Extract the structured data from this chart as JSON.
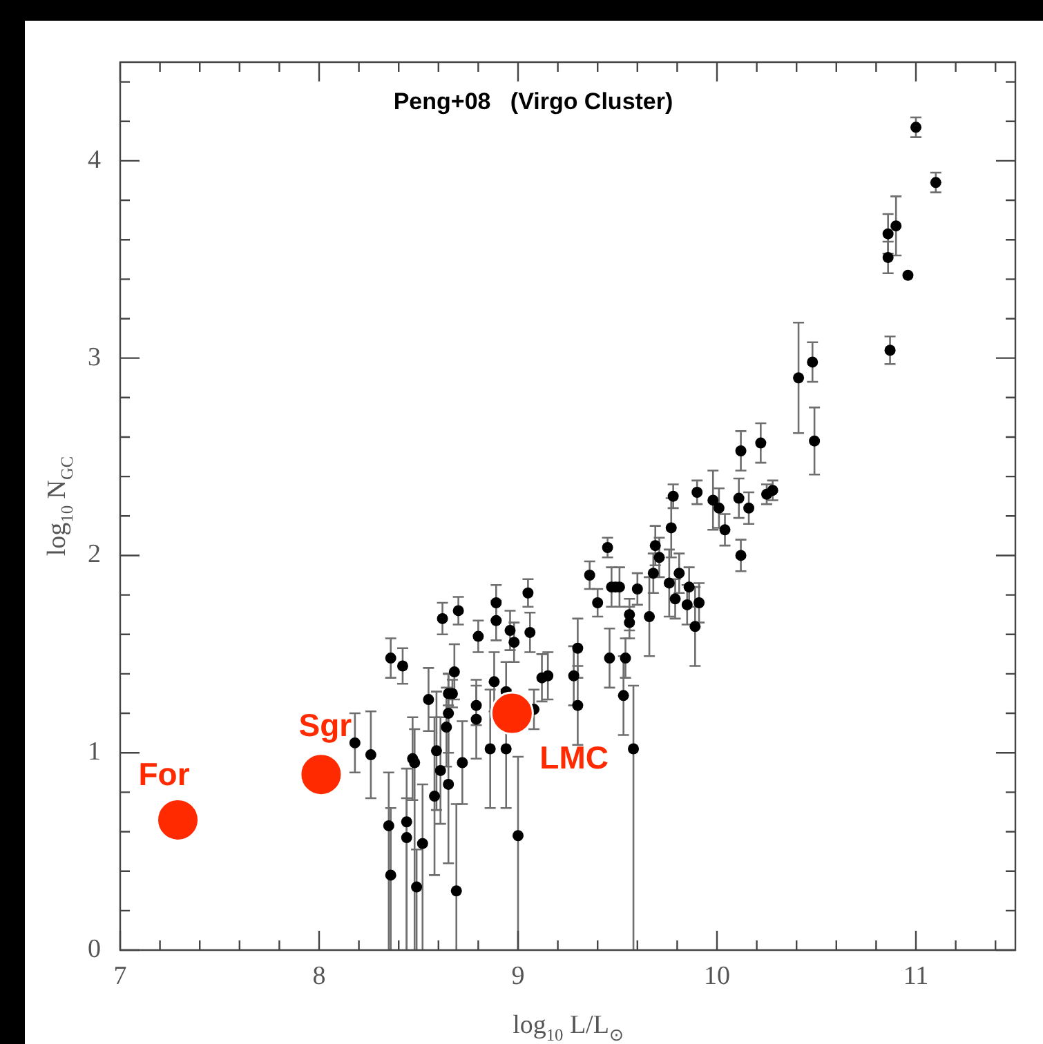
{
  "chart_data": {
    "type": "scatter",
    "title": "Peng+08   (Virgo Cluster)",
    "xlabel": "log$_{10}$ L/L$_{⊙}$",
    "ylabel": "log$_{10}$ N$_{GC}$",
    "xlim": [
      7,
      11.5
    ],
    "ylim": [
      0,
      4.5
    ],
    "xticks": [
      7,
      {
        "value": 7.2,
        "label": null
      },
      {
        "value": 7.4,
        "label": null
      },
      {
        "value": 7.6,
        "label": null
      },
      {
        "value": 7.8,
        "label": null
      },
      8,
      {
        "value": 8.2,
        "label": null
      },
      {
        "value": 8.4,
        "label": null
      },
      {
        "value": 8.6,
        "label": null
      },
      {
        "value": 8.8,
        "label": null
      },
      9,
      {
        "value": 9.2,
        "label": null
      },
      {
        "value": 9.4,
        "label": null
      },
      {
        "value": 9.6,
        "label": null
      },
      {
        "value": 9.8,
        "label": null
      },
      10,
      {
        "value": 10.2,
        "label": null
      },
      {
        "value": 10.4,
        "label": null
      },
      {
        "value": 10.6,
        "label": null
      },
      {
        "value": 10.8,
        "label": null
      },
      11,
      {
        "value": 11.2,
        "label": null
      },
      {
        "value": 11.4,
        "label": null
      }
    ],
    "yticks": [
      0,
      {
        "value": 0.2,
        "label": null
      },
      {
        "value": 0.4,
        "label": null
      },
      {
        "value": 0.6,
        "label": null
      },
      {
        "value": 0.8,
        "label": null
      },
      1,
      {
        "value": 1.2,
        "label": null
      },
      {
        "value": 1.4,
        "label": null
      },
      {
        "value": 1.6,
        "label": null
      },
      {
        "value": 1.8,
        "label": null
      },
      2,
      {
        "value": 2.2,
        "label": null
      },
      {
        "value": 2.4,
        "label": null
      },
      {
        "value": 2.6,
        "label": null
      },
      {
        "value": 2.8,
        "label": null
      },
      3,
      {
        "value": 3.2,
        "label": null
      },
      {
        "value": 3.4,
        "label": null
      },
      {
        "value": 3.6,
        "label": null
      },
      {
        "value": 3.8,
        "label": null
      },
      4,
      {
        "value": 4.2,
        "label": null
      },
      {
        "value": 4.4,
        "label": null
      }
    ],
    "grid": false,
    "legend": false,
    "marker": "circle",
    "series": [
      {
        "color": "#000000",
        "x": [
          8.18,
          8.26,
          8.36,
          8.42,
          8.35,
          8.36,
          8.44,
          8.44,
          8.47,
          8.48,
          8.49,
          8.52,
          8.55,
          8.58,
          8.59,
          8.61,
          8.62,
          8.65,
          8.64,
          8.65,
          8.65,
          8.67,
          8.68,
          8.69,
          8.7,
          8.72,
          8.79,
          8.79,
          8.8,
          8.86,
          8.88,
          8.89,
          8.89,
          8.94,
          8.94,
          8.96,
          8.98,
          9.0,
          9.05,
          9.06,
          9.08,
          9.12,
          9.15,
          9.28,
          9.3,
          9.3,
          9.36,
          9.4,
          9.45,
          9.46,
          9.47,
          9.49,
          9.51,
          9.53,
          9.54,
          9.56,
          9.56,
          9.58,
          9.6,
          9.66,
          9.68,
          9.69,
          9.71,
          9.76,
          9.77,
          9.78,
          9.79,
          9.81,
          9.85,
          9.86,
          9.89,
          9.91,
          9.9,
          9.98,
          10.01,
          10.04,
          10.11,
          10.12,
          10.16,
          10.12,
          10.22,
          10.25,
          10.28,
          10.41,
          10.48,
          10.49,
          11.0,
          11.1,
          10.86,
          10.9,
          10.86,
          10.96,
          10.87
        ],
        "values": [
          1.05,
          0.99,
          1.48,
          1.44,
          0.63,
          0.38,
          0.65,
          0.57,
          0.97,
          0.95,
          0.32,
          0.54,
          1.27,
          0.78,
          1.01,
          0.91,
          1.68,
          0.84,
          1.13,
          1.2,
          1.3,
          1.3,
          1.41,
          0.3,
          1.72,
          0.95,
          1.24,
          1.17,
          1.59,
          1.02,
          1.36,
          1.76,
          1.67,
          1.02,
          1.31,
          1.62,
          1.56,
          0.58,
          1.81,
          1.61,
          1.22,
          1.38,
          1.39,
          1.39,
          1.53,
          1.24,
          1.9,
          1.76,
          2.04,
          1.48,
          1.84,
          1.84,
          1.84,
          1.29,
          1.48,
          1.7,
          1.66,
          1.02,
          1.83,
          1.69,
          1.91,
          2.05,
          1.99,
          1.86,
          2.14,
          2.3,
          1.78,
          1.91,
          1.75,
          1.84,
          1.64,
          1.76,
          2.32,
          2.28,
          2.24,
          2.13,
          2.29,
          2.0,
          2.24,
          2.53,
          2.57,
          2.31,
          2.33,
          2.9,
          2.98,
          2.58,
          4.17,
          3.89,
          3.63,
          3.67,
          3.51,
          3.42,
          3.04
        ],
        "errors": [
          0.15,
          0.22,
          0.1,
          0.09,
          [
            0,
            0.9
          ],
          [
            0,
            0.72
          ],
          [
            0,
            0.92
          ],
          [
            0,
            0.77
          ],
          0.21,
          [
            0,
            1.12
          ],
          [
            0,
            0.51
          ],
          [
            0,
            0.84
          ],
          0.16,
          0.4,
          0.3,
          0.27,
          0.08,
          0.4,
          0.2,
          0.2,
          0.1,
          0.07,
          0.14,
          [
            0,
            0.74
          ],
          0.07,
          0.21,
          0.1,
          0.2,
          0.08,
          0.3,
          0.15,
          0.09,
          0.1,
          0.3,
          0.15,
          0.1,
          0.1,
          [
            0,
            0.98
          ],
          0.07,
          0.1,
          0.1,
          0.12,
          0.12,
          0.15,
          0.15,
          0.2,
          0.07,
          0.07,
          0.05,
          0.15,
          0.1,
          null,
          0.1,
          0.2,
          0.1,
          0.08,
          0.08,
          [
            0,
            1.34
          ],
          0.08,
          0.2,
          0.1,
          0.1,
          0.1,
          0.17,
          0.15,
          0.06,
          0.1,
          0.1,
          0.1,
          0.1,
          0.2,
          0.1,
          0.06,
          0.15,
          0.1,
          0.08,
          0.1,
          0.08,
          0.08,
          0.1,
          0.1,
          0.05,
          0.05,
          0.28,
          0.1,
          0.17,
          0.05,
          0.05,
          0.1,
          0.15,
          0.08,
          null,
          0.07
        ]
      },
      {
        "color": "#ff2a00",
        "x": [
          7.29,
          8.01,
          8.97
        ],
        "values": [
          0.66,
          0.89,
          1.2
        ]
      }
    ],
    "annotations": [
      {
        "text": "For",
        "x": 7.29,
        "y": 0.66
      },
      {
        "text": "Sgr",
        "x": 8.01,
        "y": 0.89
      },
      {
        "text": "LMC",
        "x": 8.97,
        "y": 1.2
      }
    ]
  }
}
